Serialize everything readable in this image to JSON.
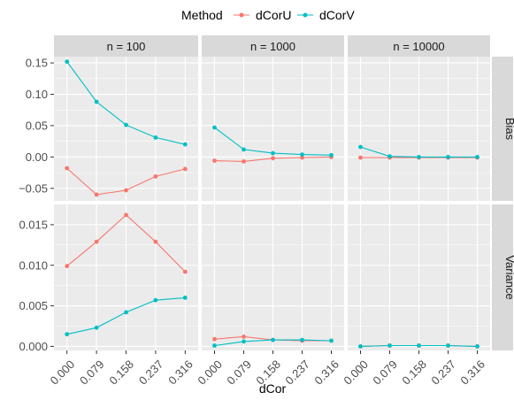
{
  "chart_data": {
    "type": "line",
    "xlabel": "dCor",
    "x_ticks": [
      "0.000",
      "0.079",
      "0.158",
      "0.237",
      "0.316"
    ],
    "legend": {
      "title": "Method",
      "position": "top",
      "entries": [
        {
          "name": "dCorU",
          "color": "#F8766D"
        },
        {
          "name": "dCorV",
          "color": "#00BFC4"
        }
      ]
    },
    "columns": [
      "n = 100",
      "n = 1000",
      "n = 10000"
    ],
    "rows": [
      {
        "label": "Bias",
        "ylim": [
          -0.07,
          0.16
        ],
        "y_ticks": [
          {
            "value": 0.15,
            "label": "0.15"
          },
          {
            "value": 0.1,
            "label": "0.10"
          },
          {
            "value": 0.05,
            "label": "0.05"
          },
          {
            "value": 0.0,
            "label": "0.00"
          },
          {
            "value": -0.05,
            "label": "−0.05"
          }
        ]
      },
      {
        "label": "Variance",
        "ylim": [
          -0.0005,
          0.0175
        ],
        "y_ticks": [
          {
            "value": 0.015,
            "label": "0.015"
          },
          {
            "value": 0.01,
            "label": "0.010"
          },
          {
            "value": 0.005,
            "label": "0.005"
          },
          {
            "value": 0.0,
            "label": "0.000"
          }
        ]
      }
    ],
    "panels": [
      {
        "row": 0,
        "col": 0,
        "series": [
          {
            "name": "dCorU",
            "values": [
              -0.018,
              -0.06,
              -0.053,
              -0.031,
              -0.019
            ]
          },
          {
            "name": "dCorV",
            "values": [
              0.152,
              0.088,
              0.051,
              0.031,
              0.02
            ]
          }
        ]
      },
      {
        "row": 0,
        "col": 1,
        "series": [
          {
            "name": "dCorU",
            "values": [
              -0.006,
              -0.007,
              -0.002,
              -0.001,
              0.0
            ]
          },
          {
            "name": "dCorV",
            "values": [
              0.047,
              0.012,
              0.006,
              0.004,
              0.003
            ]
          }
        ]
      },
      {
        "row": 0,
        "col": 2,
        "series": [
          {
            "name": "dCorU",
            "values": [
              -0.001,
              -0.001,
              -0.001,
              -0.001,
              -0.001
            ]
          },
          {
            "name": "dCorV",
            "values": [
              0.016,
              0.001,
              0.0,
              0.0,
              0.0
            ]
          }
        ]
      },
      {
        "row": 1,
        "col": 0,
        "series": [
          {
            "name": "dCorU",
            "values": [
              0.0099,
              0.0129,
              0.0162,
              0.0129,
              0.0092
            ]
          },
          {
            "name": "dCorV",
            "values": [
              0.0015,
              0.0023,
              0.0042,
              0.0057,
              0.006
            ]
          }
        ]
      },
      {
        "row": 1,
        "col": 1,
        "series": [
          {
            "name": "dCorU",
            "values": [
              0.0009,
              0.0012,
              0.0008,
              0.0007,
              0.0007
            ]
          },
          {
            "name": "dCorV",
            "values": [
              0.0001,
              0.0006,
              0.0008,
              0.0008,
              0.0007
            ]
          }
        ]
      },
      {
        "row": 1,
        "col": 2,
        "series": [
          {
            "name": "dCorU",
            "values": [
              0.0,
              0.0001,
              0.0001,
              0.0001,
              0.0
            ]
          },
          {
            "name": "dCorV",
            "values": [
              0.0,
              0.0001,
              0.0001,
              0.0001,
              0.0
            ]
          }
        ]
      }
    ]
  }
}
